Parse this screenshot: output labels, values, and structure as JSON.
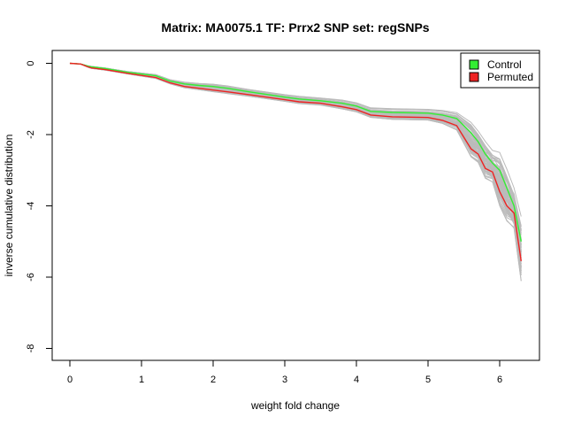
{
  "chart_data": {
    "type": "line",
    "title": "Matrix: MA0075.1 TF: Prrx2 SNP set: regSNPs",
    "xlabel": "weight fold change",
    "ylabel": "inverse cumulative distribution",
    "xlim": [
      -0.2,
      6.5
    ],
    "ylim": [
      -8.2,
      0.2
    ],
    "x_ticks": [
      0,
      1,
      2,
      3,
      4,
      5,
      6
    ],
    "y_ticks": [
      0,
      -2,
      -4,
      -6,
      -8
    ],
    "grid": false,
    "legend_position": "top-right",
    "legend": [
      {
        "label": "Control",
        "color": "#33ee33"
      },
      {
        "label": "Permuted",
        "color": "#ee2222"
      }
    ],
    "background_series_color": "#bbbbbb",
    "series": [
      {
        "name": "Control",
        "color": "#33ee33",
        "x": [
          0.0,
          0.15,
          0.25,
          0.3,
          0.5,
          0.8,
          1.2,
          1.4,
          1.6,
          1.8,
          2.0,
          2.2,
          2.5,
          3.0,
          3.2,
          3.5,
          3.8,
          4.0,
          4.2,
          4.5,
          5.0,
          5.2,
          5.4,
          5.6,
          5.7,
          5.8,
          5.9,
          6.0,
          6.1,
          6.2,
          6.3
        ],
        "values": [
          0.0,
          -0.02,
          -0.08,
          -0.1,
          -0.15,
          -0.25,
          -0.35,
          -0.5,
          -0.58,
          -0.62,
          -0.65,
          -0.7,
          -0.8,
          -0.95,
          -1.0,
          -1.05,
          -1.12,
          -1.2,
          -1.35,
          -1.38,
          -1.4,
          -1.45,
          -1.55,
          -1.95,
          -2.2,
          -2.55,
          -2.8,
          -3.0,
          -3.5,
          -4.0,
          -5.0
        ]
      },
      {
        "name": "Permuted",
        "color": "#ee2222",
        "x": [
          0.0,
          0.15,
          0.25,
          0.3,
          0.5,
          0.8,
          1.2,
          1.4,
          1.6,
          1.8,
          2.0,
          2.2,
          2.5,
          3.0,
          3.2,
          3.5,
          3.8,
          4.0,
          4.2,
          4.5,
          5.0,
          5.2,
          5.4,
          5.6,
          5.7,
          5.8,
          5.9,
          6.0,
          6.1,
          6.2,
          6.3
        ],
        "values": [
          0.0,
          -0.02,
          -0.1,
          -0.13,
          -0.18,
          -0.28,
          -0.4,
          -0.55,
          -0.65,
          -0.7,
          -0.75,
          -0.8,
          -0.88,
          -1.02,
          -1.08,
          -1.12,
          -1.22,
          -1.3,
          -1.45,
          -1.5,
          -1.52,
          -1.6,
          -1.75,
          -2.4,
          -2.55,
          -2.95,
          -3.05,
          -3.6,
          -4.0,
          -4.2,
          -5.55
        ]
      }
    ]
  }
}
